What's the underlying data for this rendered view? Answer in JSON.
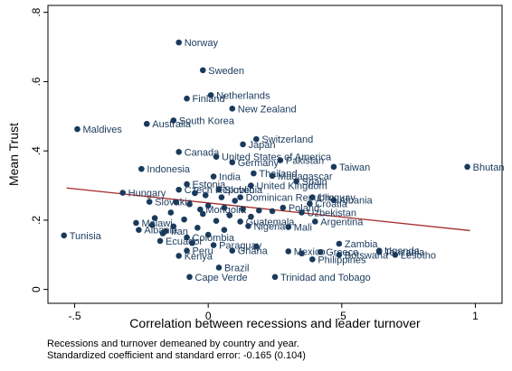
{
  "chart_data": {
    "type": "scatter",
    "xlabel": "Correlation between recessions and leader turnover",
    "ylabel": "Mean Trust",
    "xlim": [
      -0.6,
      1.1
    ],
    "ylim": [
      -0.04,
      0.82
    ],
    "xticks": [
      -0.5,
      0,
      0.5,
      1
    ],
    "xtick_labels": [
      "-.5",
      "0",
      ".5",
      "1"
    ],
    "yticks": [
      0,
      0.2,
      0.4,
      0.6,
      0.8
    ],
    "ytick_labels": [
      "0",
      ".2",
      ".4",
      ".6",
      ".8"
    ],
    "grid": false,
    "points": [
      {
        "label": "Norway",
        "x": -0.11,
        "y": 0.713
      },
      {
        "label": "Sweden",
        "x": -0.02,
        "y": 0.633
      },
      {
        "label": "Netherlands",
        "x": 0.01,
        "y": 0.561
      },
      {
        "label": "Finland",
        "x": -0.08,
        "y": 0.551
      },
      {
        "label": "New Zealand",
        "x": 0.09,
        "y": 0.522
      },
      {
        "label": "South Korea",
        "x": -0.13,
        "y": 0.488
      },
      {
        "label": "Australia",
        "x": -0.23,
        "y": 0.478
      },
      {
        "label": "Maldives",
        "x": -0.49,
        "y": 0.463
      },
      {
        "label": "Switzerland",
        "x": 0.18,
        "y": 0.434
      },
      {
        "label": "Japan",
        "x": 0.13,
        "y": 0.419
      },
      {
        "label": "Canada",
        "x": -0.11,
        "y": 0.397
      },
      {
        "label": "United States of America",
        "x": 0.03,
        "y": 0.383
      },
      {
        "label": "Pakistan",
        "x": 0.27,
        "y": 0.373
      },
      {
        "label": "Germany",
        "x": 0.09,
        "y": 0.367
      },
      {
        "label": "Indonesia",
        "x": -0.25,
        "y": 0.348
      },
      {
        "label": "Taiwan",
        "x": 0.47,
        "y": 0.354
      },
      {
        "label": "Bhutan",
        "x": 0.97,
        "y": 0.354
      },
      {
        "label": "India",
        "x": 0.02,
        "y": 0.326
      },
      {
        "label": "Thailand",
        "x": 0.17,
        "y": 0.335
      },
      {
        "label": "Madagascar",
        "x": 0.24,
        "y": 0.328
      },
      {
        "label": "Spain",
        "x": 0.33,
        "y": 0.312
      },
      {
        "label": "United Kingdom",
        "x": 0.16,
        "y": 0.3
      },
      {
        "label": "Estonia",
        "x": -0.08,
        "y": 0.304
      },
      {
        "label": "Czech Republic",
        "x": -0.11,
        "y": 0.288
      },
      {
        "label": "Slovenia",
        "x": 0.04,
        "y": 0.288
      },
      {
        "label": "Hungary",
        "x": -0.32,
        "y": 0.279
      },
      {
        "label": "Dominican Republic",
        "x": 0.12,
        "y": 0.266
      },
      {
        "label": "Uruguay",
        "x": 0.39,
        "y": 0.266
      },
      {
        "label": "Albania",
        "x": 0.47,
        "y": 0.258
      },
      {
        "label": "Slovakia",
        "x": -0.22,
        "y": 0.253
      },
      {
        "label": "Croatia",
        "x": 0.38,
        "y": 0.248
      },
      {
        "label": "Mongolia",
        "x": -0.03,
        "y": 0.231
      },
      {
        "label": "Poland",
        "x": 0.28,
        "y": 0.236
      },
      {
        "label": "Uzbekistan",
        "x": 0.35,
        "y": 0.222
      },
      {
        "label": "Argentina",
        "x": 0.4,
        "y": 0.196
      },
      {
        "label": "Guatemala",
        "x": 0.12,
        "y": 0.196
      },
      {
        "label": "Nigeria",
        "x": 0.15,
        "y": 0.183
      },
      {
        "label": "Mali",
        "x": 0.3,
        "y": 0.18
      },
      {
        "label": "Malawi",
        "x": -0.27,
        "y": 0.192
      },
      {
        "label": "Albania",
        "x": -0.26,
        "y": 0.172
      },
      {
        "label": "Iran",
        "x": -0.16,
        "y": 0.168
      },
      {
        "label": "Ecuador",
        "x": -0.18,
        "y": 0.14
      },
      {
        "label": "Colombia",
        "x": -0.08,
        "y": 0.15
      },
      {
        "label": "Paraguay",
        "x": 0.02,
        "y": 0.128
      },
      {
        "label": "Ghana",
        "x": 0.09,
        "y": 0.112
      },
      {
        "label": "Peru",
        "x": -0.08,
        "y": 0.112
      },
      {
        "label": "Kenya",
        "x": -0.11,
        "y": 0.097
      },
      {
        "label": "Tunisia",
        "x": -0.54,
        "y": 0.156
      },
      {
        "label": "Zambia",
        "x": 0.49,
        "y": 0.132
      },
      {
        "label": "Uganda",
        "x": 0.64,
        "y": 0.112
      },
      {
        "label": "Tanzania",
        "x": 0.64,
        "y": 0.108
      },
      {
        "label": "Lesotho",
        "x": 0.7,
        "y": 0.1
      },
      {
        "label": "Mexico",
        "x": 0.3,
        "y": 0.11
      },
      {
        "label": "Greece",
        "x": 0.42,
        "y": 0.108
      },
      {
        "label": "Botswana",
        "x": 0.49,
        "y": 0.1
      },
      {
        "label": "Philippines",
        "x": 0.39,
        "y": 0.087
      },
      {
        "label": "Brazil",
        "x": 0.04,
        "y": 0.063
      },
      {
        "label": "Cape Verde",
        "x": -0.07,
        "y": 0.036
      },
      {
        "label": "Trinidad and Tobago",
        "x": 0.25,
        "y": 0.036
      },
      {
        "label": "",
        "x": -0.05,
        "y": 0.278
      },
      {
        "label": "",
        "x": -0.01,
        "y": 0.272
      },
      {
        "label": "",
        "x": 0.05,
        "y": 0.266
      },
      {
        "label": "",
        "x": 0.1,
        "y": 0.256
      },
      {
        "label": "",
        "x": -0.12,
        "y": 0.252
      },
      {
        "label": "",
        "x": -0.07,
        "y": 0.246
      },
      {
        "label": "",
        "x": 0.0,
        "y": 0.242
      },
      {
        "label": "",
        "x": 0.06,
        "y": 0.236
      },
      {
        "label": "",
        "x": 0.13,
        "y": 0.232
      },
      {
        "label": "",
        "x": 0.19,
        "y": 0.228
      },
      {
        "label": "",
        "x": 0.24,
        "y": 0.226
      },
      {
        "label": "",
        "x": -0.14,
        "y": 0.222
      },
      {
        "label": "",
        "x": -0.02,
        "y": 0.218
      },
      {
        "label": "",
        "x": 0.08,
        "y": 0.214
      },
      {
        "label": "",
        "x": 0.16,
        "y": 0.21
      },
      {
        "label": "",
        "x": -0.2,
        "y": 0.206
      },
      {
        "label": "",
        "x": -0.09,
        "y": 0.202
      },
      {
        "label": "",
        "x": 0.03,
        "y": 0.198
      },
      {
        "label": "",
        "x": -0.21,
        "y": 0.186
      },
      {
        "label": "",
        "x": -0.13,
        "y": 0.182
      },
      {
        "label": "",
        "x": -0.04,
        "y": 0.178
      },
      {
        "label": "",
        "x": 0.06,
        "y": 0.172
      },
      {
        "label": "",
        "x": -0.17,
        "y": 0.162
      },
      {
        "label": "",
        "x": 0.0,
        "y": 0.158
      },
      {
        "label": "",
        "x": -0.06,
        "y": 0.134
      },
      {
        "label": "",
        "x": 0.18,
        "y": 0.124
      },
      {
        "label": "",
        "x": 0.35,
        "y": 0.104
      }
    ],
    "fit_line": {
      "x": [
        -0.53,
        0.98
      ],
      "y": [
        0.293,
        0.17
      ]
    },
    "marker_color": "#1a3a5c",
    "line_color": "#a52a2a"
  },
  "notes": [
    "Recessions and turnover demeaned by country and year.",
    "Standardized coefficient and standard error: -0.165 (0.104)"
  ]
}
